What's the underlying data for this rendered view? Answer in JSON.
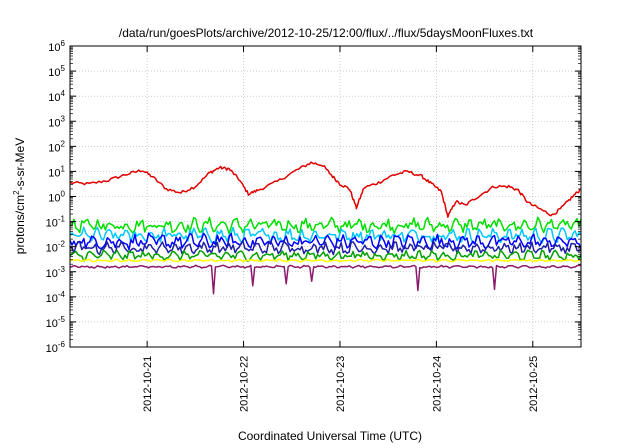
{
  "chart_data": {
    "type": "line",
    "title": "/data/run/goesPlots/archive/2012-10-25/12:00/flux/../flux/5daysMoonFluxes.txt",
    "xlabel": "Coordinated Universal Time (UTC)",
    "ylabel_parts": [
      "protons/cm",
      "2",
      "-s-sr-MeV"
    ],
    "y_scale": "log",
    "ylim_exp": [
      -6,
      6
    ],
    "y_tick_base": "10",
    "y_tick_exponents": [
      "-6",
      "-5",
      "-4",
      "-3",
      "-2",
      "-1",
      "0",
      "1",
      "2",
      "3",
      "4",
      "5",
      "6"
    ],
    "x_ticks": [
      "2012-10-21",
      "2012-10-22",
      "2012-10-23",
      "2012-10-24",
      "2012-10-25"
    ],
    "x_range_days": [
      -0.8,
      4.5
    ],
    "x_tick_days": [
      0,
      1,
      2,
      3,
      4
    ],
    "grid": true,
    "legend": "none",
    "series": [
      {
        "color": "#e00000",
        "log_points": [
          [
            -0.8,
            0.55
          ],
          [
            -0.6,
            0.5
          ],
          [
            -0.4,
            0.65
          ],
          [
            -0.2,
            0.9
          ],
          [
            -0.05,
            1.05
          ],
          [
            0.05,
            0.8
          ],
          [
            0.2,
            0.3
          ],
          [
            0.35,
            0.15
          ],
          [
            0.5,
            0.4
          ],
          [
            0.65,
            0.95
          ],
          [
            0.75,
            1.15
          ],
          [
            0.85,
            1.1
          ],
          [
            0.95,
            0.7
          ],
          [
            1.05,
            0.1
          ],
          [
            1.15,
            0.25
          ],
          [
            1.35,
            0.6
          ],
          [
            1.55,
            1.05
          ],
          [
            1.7,
            1.35
          ],
          [
            1.82,
            1.25
          ],
          [
            1.9,
            0.9
          ],
          [
            2.0,
            0.5
          ],
          [
            2.1,
            0.3
          ],
          [
            2.17,
            -0.45
          ],
          [
            2.25,
            0.35
          ],
          [
            2.4,
            0.55
          ],
          [
            2.55,
            0.85
          ],
          [
            2.7,
            1.0
          ],
          [
            2.85,
            0.8
          ],
          [
            2.95,
            0.5
          ],
          [
            3.05,
            0.2
          ],
          [
            3.12,
            -0.8
          ],
          [
            3.2,
            -0.2
          ],
          [
            3.3,
            -0.35
          ],
          [
            3.45,
            0.05
          ],
          [
            3.6,
            0.4
          ],
          [
            3.75,
            0.4
          ],
          [
            3.85,
            0.25
          ],
          [
            3.95,
            -0.25
          ],
          [
            4.1,
            -0.55
          ],
          [
            4.2,
            -0.75
          ],
          [
            4.3,
            -0.45
          ],
          [
            4.4,
            -0.05
          ],
          [
            4.5,
            0.3
          ]
        ]
      },
      {
        "color": "#00dd00",
        "base_log": -1.15,
        "amp_log": 0.3
      },
      {
        "color": "#00c8ff",
        "base_log": -1.55,
        "amp_log": 0.3
      },
      {
        "color": "#0000ff",
        "base_log": -1.8,
        "amp_log": 0.3
      },
      {
        "color": "#2020a0",
        "base_log": -2.05,
        "amp_log": 0.25
      },
      {
        "color": "#00a000",
        "base_log": -2.35,
        "amp_log": 0.2
      },
      {
        "color": "#ffff00",
        "base_log": -2.55,
        "amp_log": 0.05
      },
      {
        "color": "#8b1a6b",
        "base_log": -2.8,
        "amp_log": 0.05
      }
    ]
  }
}
